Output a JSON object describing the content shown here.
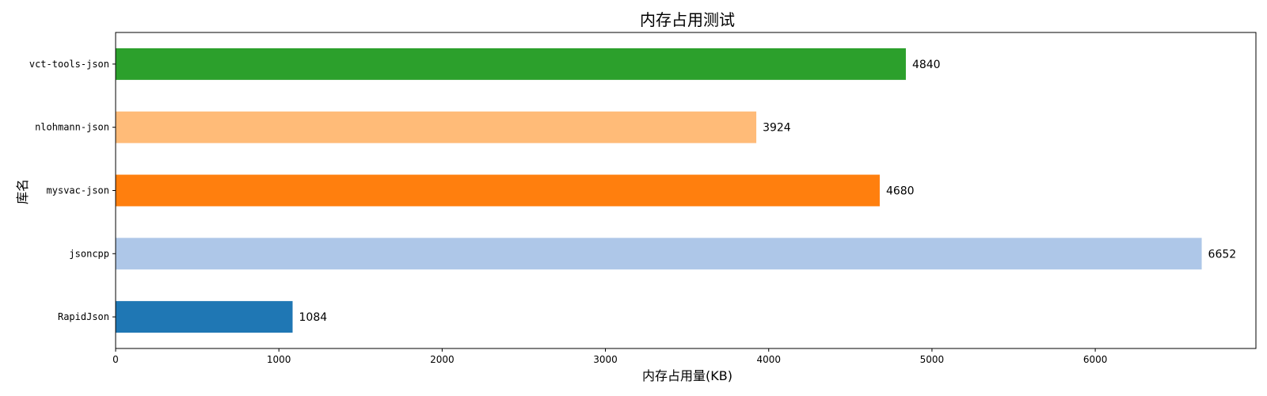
{
  "chart_data": {
    "type": "bar",
    "orientation": "horizontal",
    "title": "内存占用测试",
    "xlabel": "内存占用量(KB)",
    "ylabel": "库名",
    "categories": [
      "RapidJson",
      "jsoncpp",
      "mysvac-json",
      "nlohmann-json",
      "vct-tools-json"
    ],
    "values": [
      1084,
      6652,
      4680,
      3924,
      4840
    ],
    "colors": [
      "#1f77b4",
      "#aec7e8",
      "#ff7f0e",
      "#ffbb78",
      "#2ca02c"
    ],
    "xlim": [
      0,
      6984
    ],
    "xticks": [
      0,
      1000,
      2000,
      3000,
      4000,
      5000,
      6000
    ],
    "grid": false,
    "show_value_labels": true
  }
}
